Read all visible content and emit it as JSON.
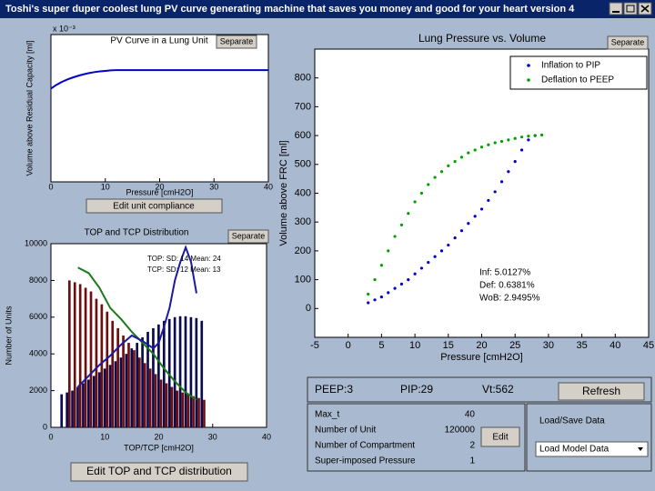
{
  "window": {
    "title": "Toshi's super duper coolest lung PV curve generating machine that saves you money and good for your heart version 4"
  },
  "chart_data": [
    {
      "type": "line",
      "title": "PV Curve in a Lung Unit",
      "xlabel": "Pressure  [cmH2O]",
      "ylabel": "Volume above Residual Capacity [ml]",
      "y_exponent": "x 10⁻³",
      "x": [
        0,
        1,
        2,
        3,
        4,
        5,
        6,
        7,
        8,
        9,
        10,
        11,
        12,
        40
      ],
      "series": [
        {
          "color": "#0000cc",
          "values": [
            3.8,
            3.95,
            4.07,
            4.17,
            4.25,
            4.32,
            4.38,
            4.43,
            4.47,
            4.5,
            4.52,
            4.54,
            4.55,
            4.55
          ]
        }
      ],
      "xlim": [
        0,
        40
      ],
      "xticks": [
        0,
        10,
        20,
        30,
        40
      ],
      "ylim": [
        0,
        6
      ]
    },
    {
      "type": "bar",
      "title": "TOP and TCP Distribution",
      "xlabel": "TOP/TCP [cmH2O]",
      "ylabel": "Number of Units",
      "annotations": [
        "TOP: SD: 14  Mean: 24",
        "TCP: SD: 12  Mean: 13"
      ],
      "series": [
        {
          "type": "bar",
          "color": "#0a0a50",
          "x": [
            2,
            3,
            4,
            5,
            6,
            7,
            8,
            9,
            10,
            11,
            12,
            13,
            14,
            15,
            16,
            17,
            18,
            19,
            20,
            21,
            22,
            23,
            24,
            25,
            26,
            27,
            28
          ],
          "values": [
            1800,
            1900,
            2000,
            2200,
            2400,
            2600,
            2800,
            3000,
            3200,
            3400,
            3600,
            3800,
            4000,
            4300,
            4600,
            4900,
            5200,
            5400,
            5600,
            5800,
            5900,
            6000,
            6050,
            6050,
            6000,
            5950,
            5800
          ]
        },
        {
          "type": "bar",
          "color": "#6e0f0f",
          "x": [
            3,
            4,
            5,
            6,
            7,
            8,
            9,
            10,
            11,
            12,
            13,
            14,
            15,
            16,
            17,
            18,
            19,
            20,
            21,
            22,
            23,
            24,
            25,
            26,
            27,
            28
          ],
          "values": [
            8000,
            7900,
            7800,
            7600,
            7400,
            7000,
            6700,
            6300,
            5800,
            5400,
            5000,
            4600,
            4200,
            3800,
            3500,
            3200,
            2900,
            2600,
            2400,
            2200,
            2000,
            1900,
            1800,
            1700,
            1600,
            1500
          ]
        },
        {
          "type": "line",
          "color": "#1a7a1a",
          "x": [
            5,
            7,
            9,
            11,
            13,
            15,
            17,
            19,
            21,
            23,
            25,
            27
          ],
          "values": [
            8700,
            8400,
            7600,
            6500,
            5900,
            5200,
            4600,
            4000,
            3200,
            2500,
            1900,
            1500
          ]
        },
        {
          "type": "line",
          "color": "#1a1aa0",
          "x": [
            5,
            7,
            9,
            11,
            13,
            15,
            17,
            19,
            20,
            21,
            22,
            23,
            24,
            25,
            26,
            27
          ],
          "values": [
            2200,
            2800,
            3400,
            3900,
            4500,
            5000,
            4700,
            4300,
            4600,
            5500,
            6500,
            8000,
            9000,
            9800,
            9000,
            7300
          ]
        }
      ],
      "xlim": [
        0,
        40
      ],
      "xticks": [
        0,
        10,
        20,
        30,
        40
      ],
      "ylim": [
        0,
        10000
      ],
      "yticks": [
        0,
        2000,
        4000,
        6000,
        8000,
        10000
      ]
    },
    {
      "type": "scatter",
      "title": "Lung Pressure vs. Volume",
      "xlabel": "Pressure  [cmH2O]",
      "ylabel": "Volume above FRC [ml]",
      "legend": "upper right",
      "annotations": [
        "Inf: 5.0127%",
        "Def: 0.6381%",
        "WoB: 2.9495%"
      ],
      "series": [
        {
          "name": "Inflation to PIP",
          "color": "#0000cc",
          "x": [
            3,
            4,
            5,
            6,
            7,
            8,
            9,
            10,
            11,
            12,
            13,
            14,
            15,
            16,
            17,
            18,
            19,
            20,
            21,
            22,
            23,
            24,
            25,
            26,
            27,
            28
          ],
          "values": [
            20,
            30,
            40,
            55,
            70,
            85,
            100,
            120,
            140,
            160,
            180,
            200,
            220,
            245,
            270,
            295,
            320,
            345,
            375,
            405,
            440,
            475,
            510,
            550,
            585,
            600
          ]
        },
        {
          "name": "Deflation to PEEP",
          "color": "#00a000",
          "x": [
            3,
            4,
            5,
            6,
            7,
            8,
            9,
            10,
            11,
            12,
            13,
            14,
            15,
            16,
            17,
            18,
            19,
            20,
            21,
            22,
            23,
            24,
            25,
            26,
            27,
            28,
            29
          ],
          "values": [
            50,
            100,
            150,
            200,
            250,
            290,
            330,
            370,
            400,
            430,
            455,
            475,
            495,
            510,
            525,
            540,
            550,
            560,
            568,
            575,
            580,
            585,
            590,
            595,
            598,
            600,
            602
          ]
        }
      ],
      "xlim": [
        -5,
        45
      ],
      "xticks": [
        -5,
        0,
        5,
        10,
        15,
        20,
        25,
        30,
        35,
        40,
        45
      ],
      "ylim": [
        -100,
        900
      ],
      "yticks": [
        0,
        100,
        200,
        300,
        400,
        500,
        600,
        700,
        800
      ]
    }
  ],
  "buttons": {
    "separate": [
      "Separate",
      "Separate",
      "Separate"
    ],
    "edit_compliance": "Edit unit compliance",
    "edit_distribution": "Edit TOP and TCP distribution",
    "refresh": "Refresh",
    "edit": "Edit"
  },
  "status": {
    "peep": "PEEP:3",
    "pip": "PIP:29",
    "vt": "Vt:562"
  },
  "params": [
    {
      "label": "Max_t",
      "value": "40"
    },
    {
      "label": "Number of Unit",
      "value": "120000"
    },
    {
      "label": "Number of Compartment",
      "value": "2"
    },
    {
      "label": "Super-imposed Pressure",
      "value": "1"
    }
  ],
  "load_save": {
    "label": "Load/Save Data",
    "select": "Load Model Data"
  }
}
